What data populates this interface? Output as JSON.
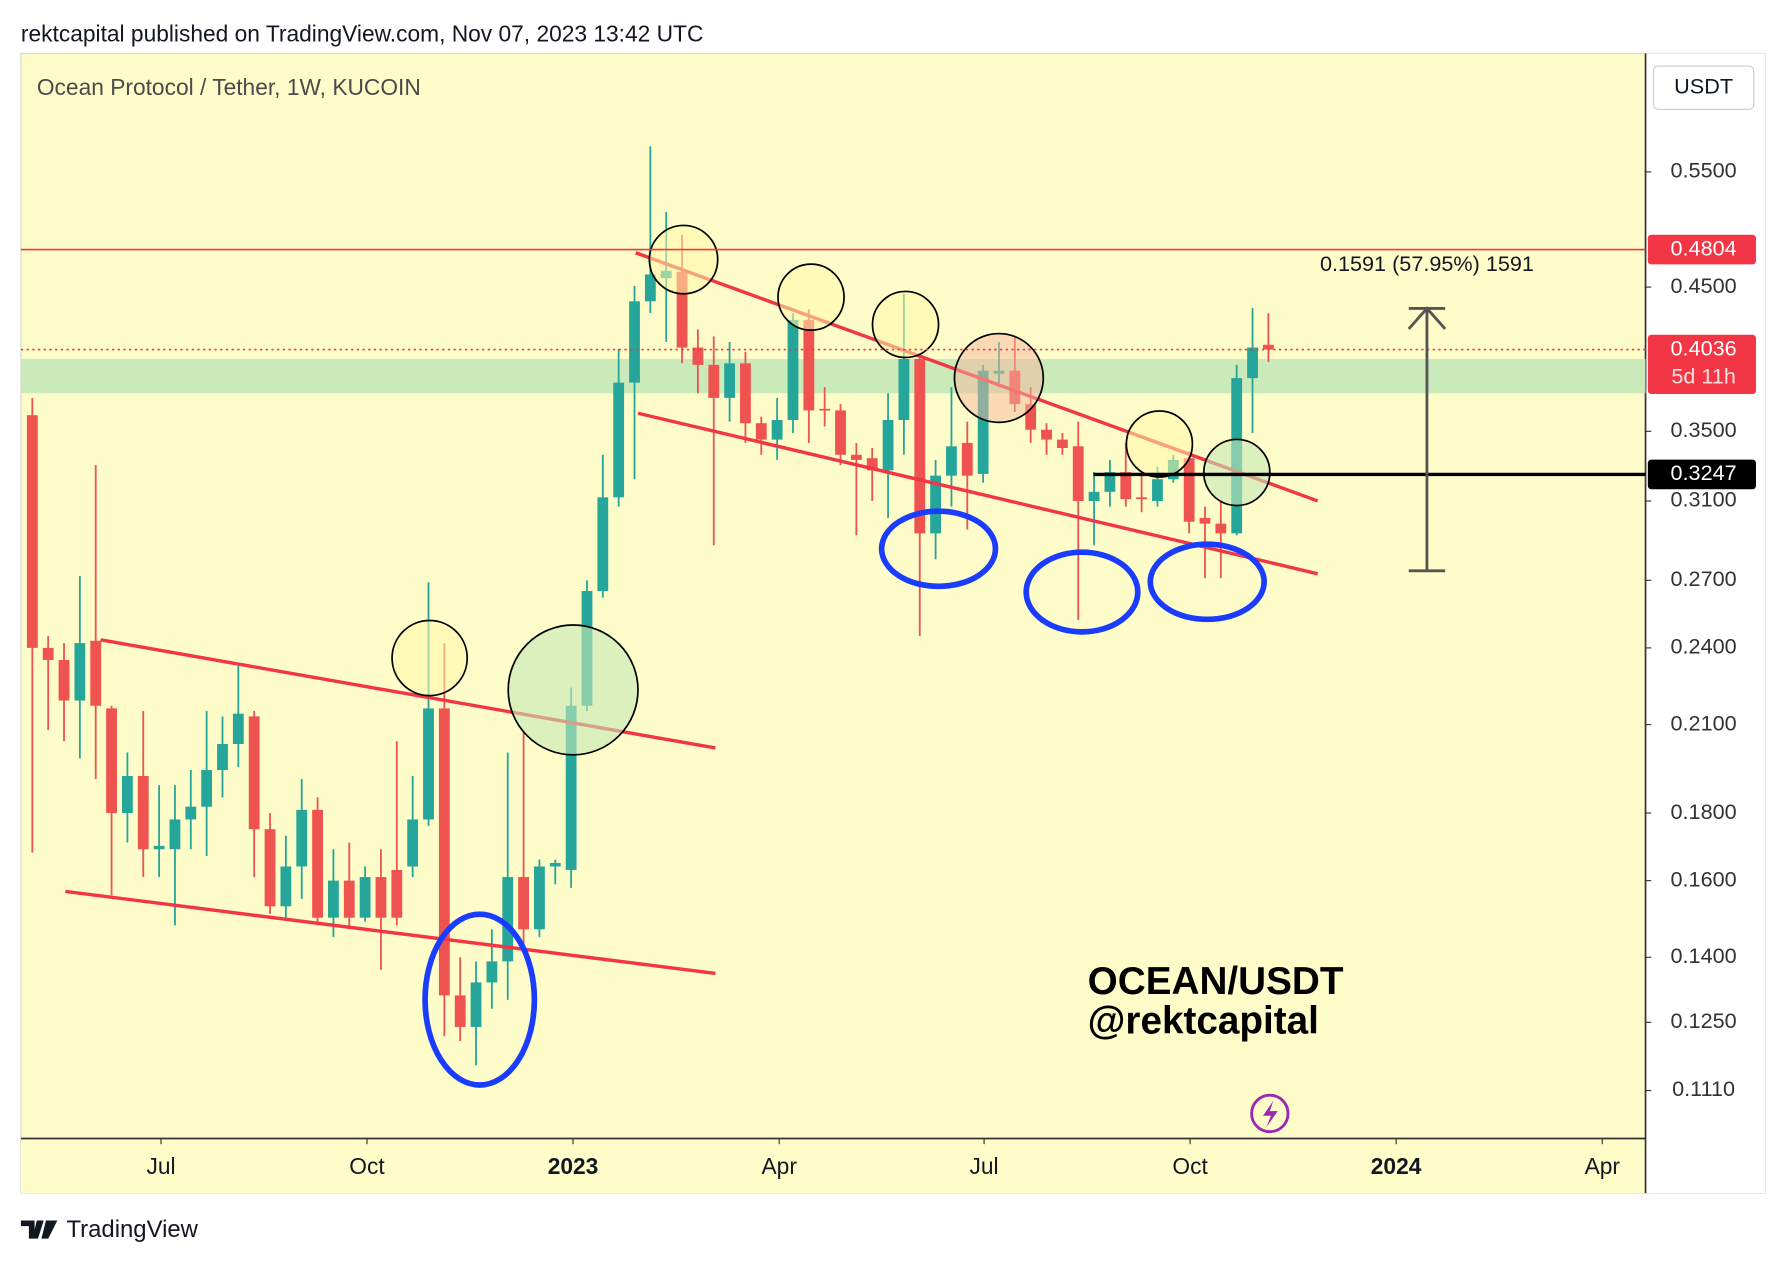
{
  "header": "rektcapital published on TradingView.com, Nov 07, 2023 13:42 UTC",
  "footer": "TradingView",
  "chart_data": {
    "type": "candlestick",
    "title": "Ocean Protocol / Tether, 1W, KUCOIN",
    "currency": "USDT",
    "annotations": [
      "OCEAN/USDT",
      "@rektcapital"
    ],
    "log_scale": true,
    "up_color": "#26a69a",
    "down_color": "#ef5350",
    "ylim": [
      0.1021,
      0.676
    ],
    "yticks": [
      {
        "value": 0.55,
        "label": "0.5500"
      },
      {
        "value": 0.45,
        "label": "0.4500"
      },
      {
        "value": 0.35,
        "label": "0.3500"
      },
      {
        "value": 0.31,
        "label": "0.3100"
      },
      {
        "value": 0.27,
        "label": "0.2700"
      },
      {
        "value": 0.24,
        "label": "0.2400"
      },
      {
        "value": 0.21,
        "label": "0.2100"
      },
      {
        "value": 0.18,
        "label": "0.1800"
      },
      {
        "value": 0.16,
        "label": "0.1600"
      },
      {
        "value": 0.14,
        "label": "0.1400"
      },
      {
        "value": 0.125,
        "label": "0.1250"
      },
      {
        "value": 0.111,
        "label": "0.1110"
      }
    ],
    "xlim": [
      -0.72,
      101.8
    ],
    "xticks": [
      {
        "value": 8.12,
        "label": "Jul"
      },
      {
        "value": 21.12,
        "label": "Oct"
      },
      {
        "value": 34.12,
        "label": "2023"
      },
      {
        "value": 47.13,
        "label": "Apr"
      },
      {
        "value": 60.06,
        "label": "Jul"
      },
      {
        "value": 73.06,
        "label": "Oct"
      },
      {
        "value": 86.06,
        "label": "2024"
      },
      {
        "value": 99.07,
        "label": "Apr"
      }
    ],
    "ohlc": [
      [
        0.36,
        0.371,
        0.168,
        0.24
      ],
      [
        0.24,
        0.245,
        0.208,
        0.235
      ],
      [
        0.235,
        0.242,
        0.204,
        0.219
      ],
      [
        0.219,
        0.272,
        0.198,
        0.242
      ],
      [
        0.243,
        0.33,
        0.191,
        0.217
      ],
      [
        0.216,
        0.217,
        0.156,
        0.18
      ],
      [
        0.18,
        0.2,
        0.171,
        0.192
      ],
      [
        0.192,
        0.215,
        0.161,
        0.169
      ],
      [
        0.169,
        0.189,
        0.161,
        0.17
      ],
      [
        0.169,
        0.189,
        0.148,
        0.178
      ],
      [
        0.178,
        0.194,
        0.169,
        0.182
      ],
      [
        0.182,
        0.215,
        0.167,
        0.194
      ],
      [
        0.194,
        0.213,
        0.185,
        0.203
      ],
      [
        0.203,
        0.234,
        0.195,
        0.214
      ],
      [
        0.213,
        0.215,
        0.161,
        0.175
      ],
      [
        0.175,
        0.18,
        0.151,
        0.153
      ],
      [
        0.153,
        0.173,
        0.15,
        0.164
      ],
      [
        0.164,
        0.191,
        0.155,
        0.181
      ],
      [
        0.181,
        0.185,
        0.148,
        0.15
      ],
      [
        0.15,
        0.169,
        0.145,
        0.16
      ],
      [
        0.16,
        0.171,
        0.147,
        0.15
      ],
      [
        0.15,
        0.164,
        0.149,
        0.161
      ],
      [
        0.161,
        0.169,
        0.137,
        0.15
      ],
      [
        0.163,
        0.204,
        0.148,
        0.15
      ],
      [
        0.164,
        0.192,
        0.161,
        0.178
      ],
      [
        0.178,
        0.269,
        0.176,
        0.216
      ],
      [
        0.216,
        0.242,
        0.122,
        0.131
      ],
      [
        0.131,
        0.14,
        0.121,
        0.124
      ],
      [
        0.124,
        0.139,
        0.116,
        0.134
      ],
      [
        0.134,
        0.147,
        0.128,
        0.139
      ],
      [
        0.139,
        0.2,
        0.13,
        0.161
      ],
      [
        0.161,
        0.208,
        0.143,
        0.147
      ],
      [
        0.147,
        0.166,
        0.145,
        0.164
      ],
      [
        0.164,
        0.166,
        0.159,
        0.165
      ],
      [
        0.163,
        0.224,
        0.158,
        0.217
      ],
      [
        0.217,
        0.27,
        0.215,
        0.265
      ],
      [
        0.265,
        0.336,
        0.262,
        0.312
      ],
      [
        0.312,
        0.404,
        0.307,
        0.381
      ],
      [
        0.381,
        0.451,
        0.322,
        0.439
      ],
      [
        0.439,
        0.575,
        0.43,
        0.46
      ],
      [
        0.457,
        0.513,
        0.409,
        0.463
      ],
      [
        0.462,
        0.493,
        0.394,
        0.405
      ],
      [
        0.405,
        0.418,
        0.374,
        0.393
      ],
      [
        0.393,
        0.413,
        0.287,
        0.371
      ],
      [
        0.371,
        0.409,
        0.356,
        0.394
      ],
      [
        0.394,
        0.402,
        0.343,
        0.355
      ],
      [
        0.355,
        0.359,
        0.336,
        0.345
      ],
      [
        0.345,
        0.371,
        0.333,
        0.357
      ],
      [
        0.357,
        0.43,
        0.349,
        0.425
      ],
      [
        0.425,
        0.433,
        0.343,
        0.363
      ],
      [
        0.364,
        0.378,
        0.353,
        0.363
      ],
      [
        0.363,
        0.367,
        0.33,
        0.336
      ],
      [
        0.336,
        0.343,
        0.292,
        0.333
      ],
      [
        0.334,
        0.34,
        0.31,
        0.327
      ],
      [
        0.327,
        0.374,
        0.301,
        0.357
      ],
      [
        0.357,
        0.445,
        0.336,
        0.397
      ],
      [
        0.397,
        0.399,
        0.245,
        0.293
      ],
      [
        0.293,
        0.333,
        0.28,
        0.324
      ],
      [
        0.324,
        0.378,
        0.307,
        0.341
      ],
      [
        0.343,
        0.356,
        0.295,
        0.324
      ],
      [
        0.325,
        0.393,
        0.32,
        0.389
      ],
      [
        0.387,
        0.409,
        0.378,
        0.389
      ],
      [
        0.389,
        0.412,
        0.362,
        0.367
      ],
      [
        0.367,
        0.378,
        0.343,
        0.351
      ],
      [
        0.351,
        0.355,
        0.336,
        0.345
      ],
      [
        0.345,
        0.349,
        0.336,
        0.34
      ],
      [
        0.341,
        0.356,
        0.252,
        0.31
      ],
      [
        0.31,
        0.326,
        0.287,
        0.315
      ],
      [
        0.315,
        0.333,
        0.307,
        0.326
      ],
      [
        0.326,
        0.343,
        0.307,
        0.311
      ],
      [
        0.312,
        0.326,
        0.304,
        0.311
      ],
      [
        0.31,
        0.329,
        0.307,
        0.322
      ],
      [
        0.322,
        0.336,
        0.32,
        0.333
      ],
      [
        0.334,
        0.338,
        0.293,
        0.299
      ],
      [
        0.301,
        0.307,
        0.271,
        0.298
      ],
      [
        0.298,
        0.31,
        0.271,
        0.293
      ],
      [
        0.293,
        0.393,
        0.292,
        0.384
      ],
      [
        0.384,
        0.434,
        0.349,
        0.405
      ],
      [
        0.407,
        0.43,
        0.395,
        0.4036
      ]
    ],
    "zone": [
      0.374,
      0.397
    ],
    "zone_color": "#c5e8b7",
    "levels": [
      {
        "value": 0.4804,
        "color": "#f23645",
        "style": "solid"
      },
      {
        "value": 0.4036,
        "color": "#f23645",
        "style": "dotted",
        "countdown": "5d 11h"
      },
      {
        "value": 0.3247,
        "color": "#000000",
        "style": "solid"
      }
    ],
    "measure": {
      "from": 0.2745,
      "to": 0.4336,
      "label": "0.1591 (57.95%) 1591"
    }
  }
}
